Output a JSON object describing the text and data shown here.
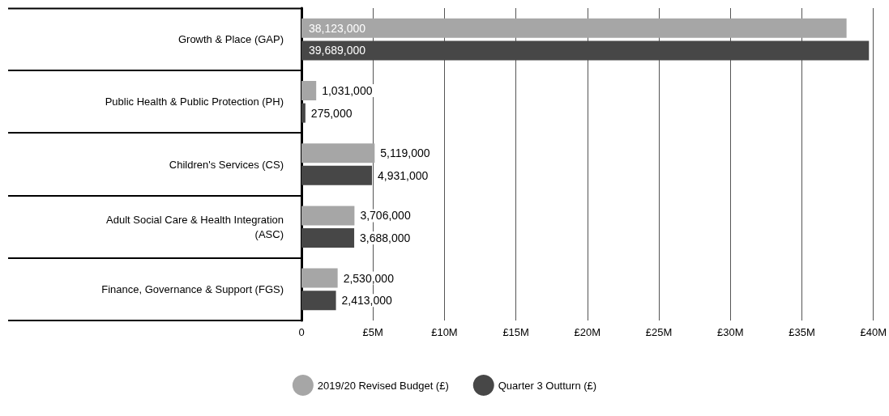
{
  "chart_data": {
    "type": "bar",
    "orientation": "horizontal",
    "categories": [
      "Growth & Place (GAP)",
      "Public Health & Public Protection (PH)",
      "Children's Services (CS)",
      "Adult Social Care & Health Integration\n(ASC)",
      "Finance, Governance & Support (FGS)"
    ],
    "series": [
      {
        "name": "2019/20 Revised Budget (£)",
        "color": "#a6a6a6",
        "values": [
          38123000,
          1031000,
          5119000,
          3706000,
          2530000
        ],
        "value_labels": [
          "38,123,000",
          "1,031,000",
          "5,119,000",
          "3,706,000",
          "2,530,000"
        ]
      },
      {
        "name": "Quarter 3 Outturn (£)",
        "color": "#474747",
        "values": [
          39689000,
          275000,
          4931000,
          3688000,
          2413000
        ],
        "value_labels": [
          "39,689,000",
          "275,000",
          "4,931,000",
          "3,688,000",
          "2,413,000"
        ]
      }
    ],
    "xlim": [
      0,
      40000000
    ],
    "xticks": [
      0,
      {
        "value": 5000000,
        "label": "£5M"
      },
      {
        "value": 10000000,
        "label": "£10M"
      },
      {
        "value": 15000000,
        "label": "£15M"
      },
      {
        "value": 20000000,
        "label": "£20M"
      },
      {
        "value": 25000000,
        "label": "£25M"
      },
      {
        "value": 30000000,
        "label": "£30M"
      },
      {
        "value": 35000000,
        "label": "£35M"
      },
      {
        "value": 40000000,
        "label": "£40M"
      }
    ],
    "grid": "x",
    "legend": "bottom"
  }
}
